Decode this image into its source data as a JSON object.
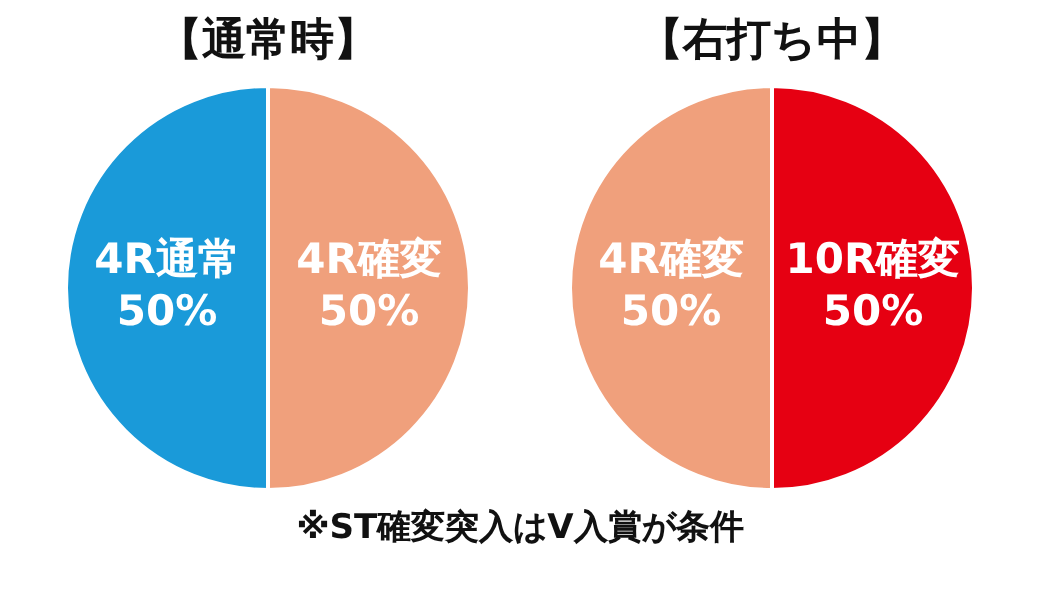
{
  "chart_data": [
    {
      "type": "pie",
      "title": "【通常時】",
      "categories": [
        "4R確変",
        "4R通常"
      ],
      "values": [
        50,
        50
      ],
      "colors": [
        "#f0a07c",
        "#1a9ad9"
      ],
      "value_labels": [
        "50%",
        "50%"
      ],
      "legend": false
    },
    {
      "type": "pie",
      "title": "【右打ち中】",
      "categories": [
        "10R確変",
        "4R確変"
      ],
      "values": [
        50,
        50
      ],
      "colors": [
        "#e60012",
        "#f0a07c"
      ],
      "value_labels": [
        "50%",
        "50%"
      ],
      "legend": false,
      "annotations": [
        "※ST確変突入はV入賞が条件"
      ]
    }
  ]
}
